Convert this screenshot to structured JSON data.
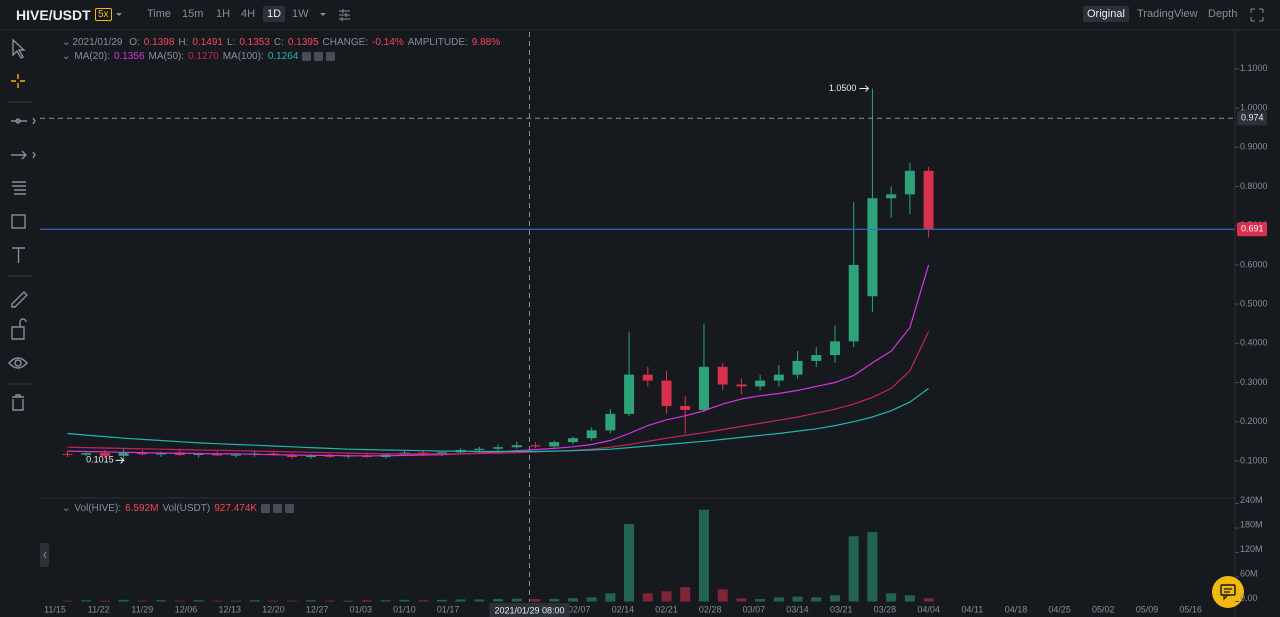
{
  "toolbar": {
    "symbol": "HIVE/USDT",
    "leverage": "5x",
    "intervals": [
      "Time",
      "15m",
      "1H",
      "4H",
      "1D",
      "1W"
    ],
    "views": [
      "Original",
      "TradingView",
      "Depth"
    ]
  },
  "legend": {
    "date": "2021/01/29",
    "items": [
      {
        "label": "O:",
        "value": "0.1398"
      },
      {
        "label": "H:",
        "value": "0.1491"
      },
      {
        "label": "L:",
        "value": "0.1353"
      },
      {
        "label": "C:",
        "value": "0.1395"
      },
      {
        "label": "CHANGE:",
        "value": "-0.14%"
      },
      {
        "label": "AMPLITUDE:",
        "value": "9.88%"
      }
    ]
  },
  "chart_data": {
    "type": "candlestick",
    "x_labels": [
      "11/15",
      "11/22",
      "11/29",
      "12/06",
      "12/13",
      "12/20",
      "12/27",
      "01/03",
      "01/10",
      "01/17",
      null,
      null,
      "02/07",
      "02/14",
      "02/21",
      "02/28",
      "03/07",
      "03/14",
      "03/21",
      "03/28",
      "04/04",
      "04/11",
      "04/18",
      "04/25",
      "05/02",
      "05/09",
      "05/16"
    ],
    "open": [
      0.118,
      0.116,
      0.12,
      0.113,
      0.122,
      0.117,
      0.119,
      0.115,
      0.118,
      0.114,
      0.116,
      0.119,
      0.115,
      0.11,
      0.113,
      0.111,
      0.114,
      0.11,
      0.116,
      0.121,
      0.115,
      0.122,
      0.128,
      0.131,
      0.135,
      0.14,
      0.137,
      0.148,
      0.158,
      0.178,
      0.22,
      0.32,
      0.305,
      0.24,
      0.23,
      0.34,
      0.295,
      0.29,
      0.305,
      0.32,
      0.355,
      0.37,
      0.405,
      0.52,
      0.77,
      0.78,
      0.84
    ],
    "high": [
      0.125,
      0.122,
      0.128,
      0.13,
      0.128,
      0.123,
      0.132,
      0.121,
      0.125,
      0.12,
      0.124,
      0.125,
      0.12,
      0.118,
      0.119,
      0.117,
      0.121,
      0.119,
      0.128,
      0.126,
      0.124,
      0.132,
      0.136,
      0.142,
      0.149,
      0.148,
      0.152,
      0.162,
      0.186,
      0.232,
      0.43,
      0.34,
      0.33,
      0.265,
      0.45,
      0.35,
      0.31,
      0.32,
      0.345,
      0.38,
      0.39,
      0.445,
      0.76,
      1.05,
      0.8,
      0.86,
      0.85
    ],
    "low": [
      0.11,
      0.112,
      0.112,
      0.1015,
      0.114,
      0.11,
      0.113,
      0.109,
      0.112,
      0.108,
      0.111,
      0.113,
      0.106,
      0.105,
      0.108,
      0.106,
      0.108,
      0.106,
      0.112,
      0.112,
      0.112,
      0.118,
      0.122,
      0.125,
      0.131,
      0.133,
      0.134,
      0.142,
      0.152,
      0.17,
      0.214,
      0.29,
      0.22,
      0.17,
      0.225,
      0.28,
      0.27,
      0.28,
      0.29,
      0.31,
      0.34,
      0.35,
      0.39,
      0.48,
      0.72,
      0.73,
      0.67
    ],
    "close": [
      0.116,
      0.12,
      0.113,
      0.122,
      0.117,
      0.119,
      0.115,
      0.118,
      0.114,
      0.116,
      0.119,
      0.115,
      0.11,
      0.113,
      0.111,
      0.114,
      0.11,
      0.116,
      0.121,
      0.115,
      0.122,
      0.128,
      0.131,
      0.135,
      0.14,
      0.137,
      0.148,
      0.158,
      0.178,
      0.22,
      0.32,
      0.305,
      0.24,
      0.23,
      0.34,
      0.295,
      0.29,
      0.305,
      0.32,
      0.355,
      0.37,
      0.405,
      0.6,
      0.77,
      0.78,
      0.84,
      0.691
    ],
    "volume": [
      2000000,
      3000000,
      2000000,
      4000000,
      2000000,
      3000000,
      2000000,
      3000000,
      2000000,
      2000000,
      3000000,
      2000000,
      2000000,
      3000000,
      2000000,
      2000000,
      3000000,
      3000000,
      4000000,
      3000000,
      4000000,
      5000000,
      5000000,
      6000000,
      7000000,
      6000000,
      6000000,
      8000000,
      10000000,
      20000000,
      190000000,
      20000000,
      25000000,
      35000000,
      225000000,
      30000000,
      8000000,
      6000000,
      10000000,
      12000000,
      10000000,
      15000000,
      160000000,
      170000000,
      20000000,
      15000000,
      8000000
    ],
    "up_color": "#2ea37a",
    "down_color": "#d9304e",
    "series": [
      {
        "name": "MA(20):",
        "current": "0.1356",
        "color": "#d633e0",
        "values": [
          0.125,
          0.124,
          0.123,
          0.122,
          0.121,
          0.12,
          0.12,
          0.119,
          0.118,
          0.118,
          0.117,
          0.116,
          0.115,
          0.114,
          0.114,
          0.113,
          0.113,
          0.113,
          0.114,
          0.115,
          0.116,
          0.118,
          0.12,
          0.123,
          0.126,
          0.129,
          0.132,
          0.136,
          0.142,
          0.152,
          0.17,
          0.19,
          0.205,
          0.215,
          0.228,
          0.245,
          0.258,
          0.266,
          0.272,
          0.28,
          0.29,
          0.3,
          0.318,
          0.35,
          0.38,
          0.44,
          0.6
        ]
      },
      {
        "name": "MA(50):",
        "current": "0.1270",
        "color": "#c2255c",
        "values": [
          0.135,
          0.134,
          0.133,
          0.132,
          0.131,
          0.13,
          0.129,
          0.128,
          0.127,
          0.126,
          0.125,
          0.124,
          0.123,
          0.122,
          0.121,
          0.12,
          0.119,
          0.118,
          0.118,
          0.118,
          0.118,
          0.118,
          0.119,
          0.12,
          0.121,
          0.123,
          0.125,
          0.127,
          0.13,
          0.135,
          0.142,
          0.15,
          0.158,
          0.165,
          0.172,
          0.18,
          0.188,
          0.196,
          0.204,
          0.212,
          0.222,
          0.232,
          0.245,
          0.262,
          0.285,
          0.33,
          0.43
        ]
      },
      {
        "name": "MA(100):",
        "current": "0.1264",
        "color": "#1fb5ad",
        "values": [
          0.17,
          0.166,
          0.162,
          0.158,
          0.155,
          0.152,
          0.149,
          0.146,
          0.144,
          0.142,
          0.14,
          0.138,
          0.136,
          0.134,
          0.132,
          0.13,
          0.129,
          0.128,
          0.127,
          0.126,
          0.125,
          0.125,
          0.124,
          0.124,
          0.124,
          0.124,
          0.125,
          0.126,
          0.128,
          0.13,
          0.134,
          0.138,
          0.142,
          0.146,
          0.15,
          0.155,
          0.16,
          0.165,
          0.17,
          0.176,
          0.182,
          0.19,
          0.2,
          0.212,
          0.228,
          0.25,
          0.285
        ]
      }
    ],
    "ylim": [
      0.008,
      1.194
    ],
    "yticks": [
      {
        "value": 0.1,
        "label": "0.1000"
      },
      {
        "value": 0.2,
        "label": "0.2000"
      },
      {
        "value": 0.3,
        "label": "0.3000"
      },
      {
        "value": 0.4,
        "label": "0.4000"
      },
      {
        "value": 0.5,
        "label": "0.5000"
      },
      {
        "value": 0.6,
        "label": "0.6000"
      },
      {
        "value": 0.7,
        "label": "0.7000"
      },
      {
        "value": 0.8,
        "label": "0.8000"
      },
      {
        "value": 0.9,
        "label": "0.9000"
      },
      {
        "value": 1.0,
        "label": "1.0000"
      },
      {
        "value": 1.1,
        "label": "1.1000"
      }
    ],
    "volume_ylim": [
      0,
      253700000
    ],
    "volume_ticks": [
      {
        "value": 0,
        "label": "0.00"
      },
      {
        "value": 60000000,
        "label": "60M"
      },
      {
        "value": 120000000,
        "label": "120M"
      },
      {
        "value": 180000000,
        "label": "180M"
      },
      {
        "value": 240000000,
        "label": "240M"
      }
    ],
    "volume_legend": [
      {
        "label": "Vol(HIVE):",
        "value": "6.592M"
      },
      {
        "label": "Vol(USDT)",
        "value": "927.474K"
      }
    ],
    "high_marker": {
      "value": 1.05,
      "label": "1.0500"
    },
    "low_marker": 0.1015,
    "crosshair_price": 0.974,
    "crosshair_time": "2021/01/29 08:00",
    "last_price": 0.691,
    "last_price_color": "#3b6fd6"
  }
}
